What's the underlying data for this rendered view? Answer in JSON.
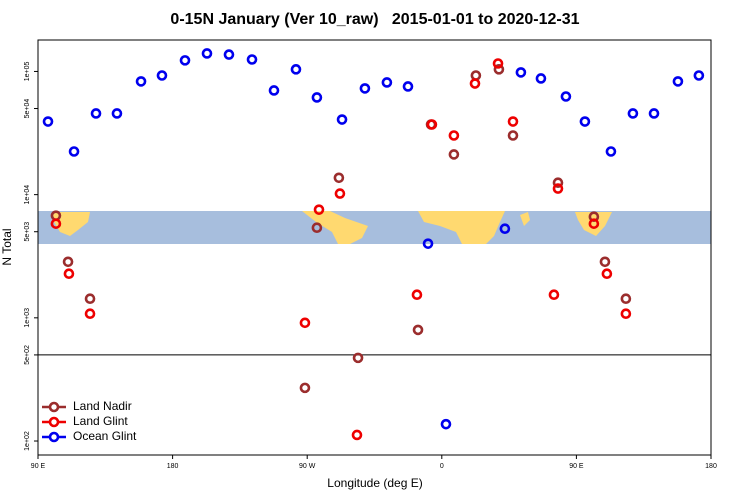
{
  "chart_data": {
    "type": "scatter",
    "title": "0-15N January (Ver 10_raw)   2015-01-01 to 2020-12-31",
    "x_label": "Longitude (deg E)",
    "y_label": "N Total",
    "log_y": true,
    "legend": "bottom-left",
    "reference_line": 500,
    "xlim": [
      90,
      540
    ],
    "xticks": [
      {
        "value": 90,
        "label": "90 E"
      },
      180,
      {
        "value": 270,
        "label": "90 W"
      },
      {
        "value": 360,
        "label": "0"
      },
      {
        "value": 450,
        "label": "90 E"
      },
      {
        "value": 540,
        "label": "180"
      }
    ],
    "ylim": [
      77,
      180000
    ],
    "yticks": [
      {
        "value": 100,
        "label": "1e+02"
      },
      {
        "value": 500,
        "label": "5e+02"
      },
      {
        "value": 1000,
        "label": "1e+03"
      },
      {
        "value": 5000,
        "label": "5e+03"
      },
      {
        "value": 10000,
        "label": "1e+04"
      },
      {
        "value": 50000,
        "label": "5e+04"
      },
      {
        "value": 100000,
        "label": "1e+05"
      }
    ],
    "series": [
      {
        "name": "Land Nadir",
        "color": "#9b2d2d",
        "x": [
          102,
          110.1,
          124.8,
          276.5,
          291.2,
          268.5,
          304,
          344.1,
          352.8,
          368.1,
          382.8,
          398.2,
          407.6,
          437.7,
          461.7,
          469.1,
          483.1
        ],
        "values": [
          6750,
          2850,
          1430,
          5390,
          13700,
          270,
          473,
          798,
          37100,
          21200,
          92700,
          104000,
          30200,
          12500,
          6620,
          2850,
          1430
        ]
      },
      {
        "name": "Land Glint",
        "color": "#ee0000",
        "x": [
          102,
          110.7,
          124.8,
          277.9,
          291.9,
          268.5,
          303.3,
          343.4,
          353.4,
          368.1,
          382.2,
          397.6,
          407.6,
          437.7,
          435,
          461.7,
          470.4,
          483.1
        ],
        "values": [
          5810,
          2280,
          1080,
          7550,
          10200,
          911,
          112,
          1540,
          37100,
          30200,
          79800,
          116000,
          39200,
          11200,
          1540,
          5810,
          2280,
          1080
        ]
      },
      {
        "name": "Ocean Glint",
        "color": "#0000ee",
        "x": [
          96.7,
          114.1,
          128.8,
          142.8,
          158.9,
          172.9,
          188.3,
          203,
          217.7,
          233.1,
          247.8,
          262.5,
          276.5,
          293.3,
          308.6,
          323.3,
          337.4,
          350.8,
          362.8,
          402.2,
          412.9,
          426.3,
          443,
          455.7,
          473.1,
          487.8,
          501.9,
          517.9,
          531.9
        ],
        "values": [
          39200,
          22400,
          45600,
          45600,
          83000,
          92700,
          123000,
          140000,
          137000,
          125000,
          70100,
          104000,
          61500,
          40700,
          72800,
          81400,
          75500,
          4000,
          137,
          5290,
          98200,
          87700,
          62600,
          39200,
          22400,
          45600,
          45600,
          83000,
          92700
        ]
      }
    ]
  }
}
